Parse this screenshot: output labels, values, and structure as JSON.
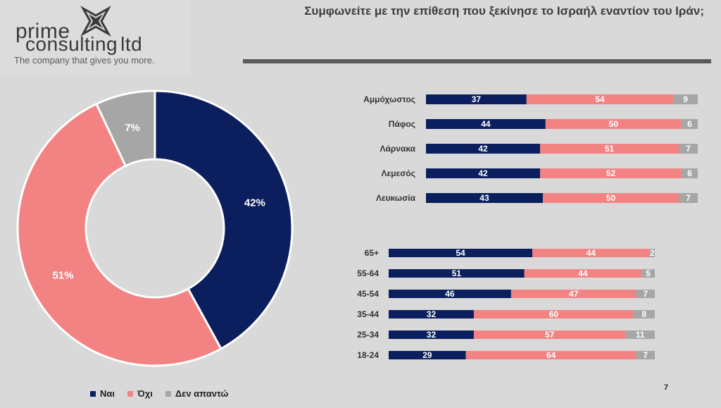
{
  "logo": {
    "line1": "prime",
    "line2": "consulting",
    "line2b": "ltd",
    "tagline": "The company that gives you more."
  },
  "header": {
    "title": "Συμφωνείτε με την επίθεση που ξεκίνησε το Ισραήλ εναντίον του Ιράν;"
  },
  "colors": {
    "nai": "#0b1f5e",
    "ochi": "#f38383",
    "den": "#a6a6a6"
  },
  "legend": [
    {
      "label": "Ναι",
      "color": "#0b1f5e"
    },
    {
      "label": "Όχι",
      "color": "#f38383"
    },
    {
      "label": "Δεν απαντώ",
      "color": "#a6a6a6"
    }
  ],
  "page_number": "7",
  "chart_data": [
    {
      "type": "pie",
      "labels": [
        "Ναι",
        "Όχι",
        "Δεν απαντώ"
      ],
      "values": [
        42,
        51,
        7
      ],
      "value_labels": [
        "42%",
        "51%",
        "7%"
      ]
    },
    {
      "type": "bar",
      "orientation": "horizontal",
      "stacked": true,
      "categories": [
        "Αμμόχωστος",
        "Πάφος",
        "Λάρνακα",
        "Λεμεσός",
        "Λευκωσία"
      ],
      "series": [
        {
          "name": "Ναι",
          "values": [
            37,
            44,
            42,
            42,
            43
          ]
        },
        {
          "name": "Όχι",
          "values": [
            54,
            50,
            51,
            52,
            50
          ]
        },
        {
          "name": "Δεν απαντώ",
          "values": [
            9,
            6,
            7,
            6,
            7
          ]
        }
      ]
    },
    {
      "type": "bar",
      "orientation": "horizontal",
      "stacked": true,
      "categories": [
        "65+",
        "55-64",
        "45-54",
        "35-44",
        "25-34",
        "18-24"
      ],
      "series": [
        {
          "name": "Ναι",
          "values": [
            54,
            51,
            46,
            32,
            32,
            29
          ]
        },
        {
          "name": "Όχι",
          "values": [
            44,
            44,
            47,
            60,
            57,
            64
          ]
        },
        {
          "name": "Δεν απαντώ",
          "values": [
            2,
            5,
            7,
            8,
            11,
            7
          ]
        }
      ]
    }
  ]
}
